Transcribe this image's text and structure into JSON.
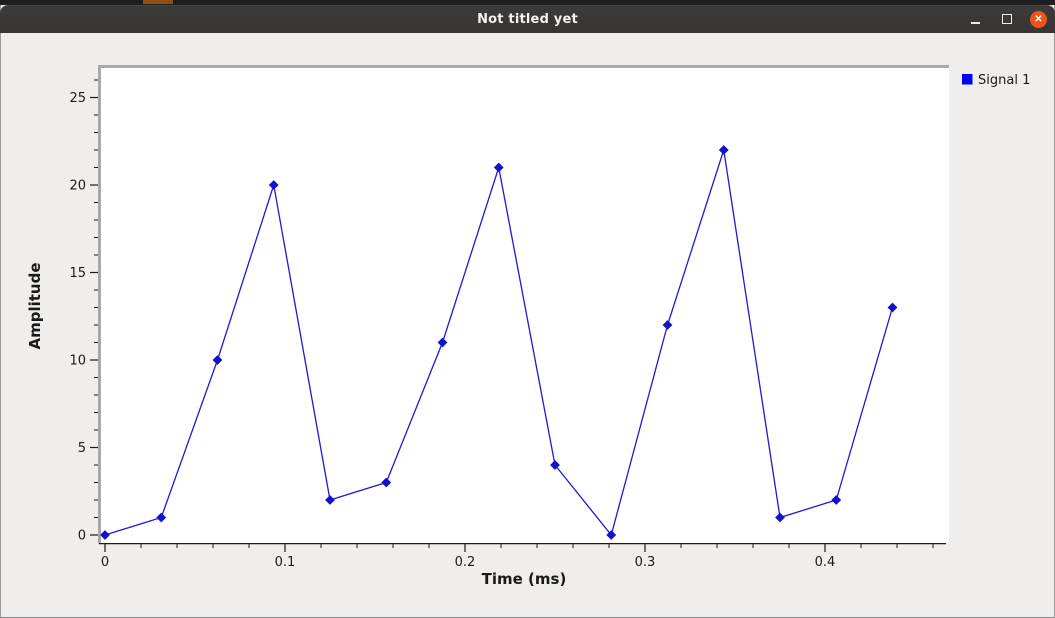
{
  "window": {
    "title": "Not titled yet",
    "controls": {
      "minimize": "minimize",
      "maximize": "maximize",
      "close": "close",
      "close_glyph": "✕"
    },
    "colors": {
      "titlebar_bg": "#393734",
      "close_button_bg": "#e9541f",
      "content_bg": "#efeeec"
    }
  },
  "chart_data": {
    "type": "line",
    "title": "",
    "xlabel": "Time (ms)",
    "ylabel": "Amplitude",
    "series": [
      {
        "name": "Signal 1",
        "color": "#1b1bd4",
        "marker": "diamond",
        "marker_color": "#1212c8",
        "x": [
          0,
          0.03125,
          0.0625,
          0.09375,
          0.125,
          0.15625,
          0.1875,
          0.21875,
          0.25,
          0.28125,
          0.3125,
          0.34375,
          0.375,
          0.40625,
          0.4375
        ],
        "y": [
          0,
          1,
          10,
          20,
          2,
          3,
          11,
          21,
          4,
          0,
          12,
          22,
          1,
          2,
          13
        ]
      }
    ],
    "xlim": [
      -0.00222,
      0.46889
    ],
    "ylim": [
      -0.457,
      26.686
    ],
    "x_major_ticks": [
      0,
      0.1,
      0.2,
      0.3,
      0.4
    ],
    "x_major_labels": [
      "0",
      "0.1",
      "0.2",
      "0.3",
      "0.4"
    ],
    "x_minor_step": 0.02,
    "x_minor_max": 0.46,
    "y_major_ticks": [
      0,
      5,
      10,
      15,
      20,
      25
    ],
    "y_major_labels": [
      "0",
      "5",
      "10",
      "15",
      "20",
      "25"
    ],
    "y_minor_step": 1,
    "y_minor_max": 26,
    "grid": false,
    "legend": {
      "position": "outside-top-right",
      "entries": [
        {
          "label": "Signal 1",
          "swatch_color": "#0000ff"
        }
      ]
    }
  }
}
